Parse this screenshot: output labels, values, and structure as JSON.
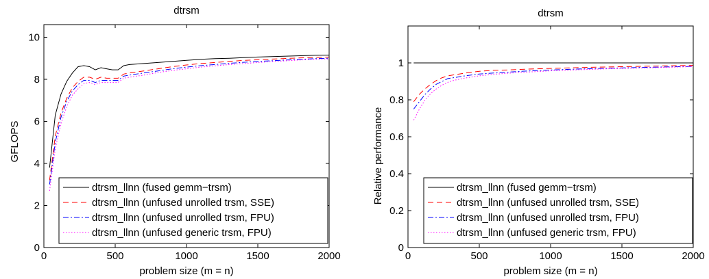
{
  "chart_data": [
    {
      "type": "line",
      "title": "dtrsm",
      "xlabel": "problem size (m = n)",
      "ylabel": "GFLOPS",
      "xlim": [
        0,
        2000
      ],
      "ylim": [
        0,
        10.6
      ],
      "xticks": [
        0,
        500,
        1000,
        1500,
        2000
      ],
      "yticks": [
        0,
        2,
        4,
        6,
        8,
        10
      ],
      "grid": false,
      "legend_position": "bottom-right",
      "series": [
        {
          "name": "dtrsm_llnn (fused gemm−trsm)",
          "color": "#000000",
          "dash": "solid",
          "x": [
            40,
            80,
            120,
            160,
            200,
            240,
            280,
            320,
            360,
            400,
            440,
            480,
            520,
            560,
            600,
            700,
            800,
            900,
            1000,
            1100,
            1200,
            1300,
            1400,
            1500,
            1600,
            1700,
            1800,
            1900,
            2000
          ],
          "y": [
            3.8,
            6.3,
            7.3,
            7.9,
            8.3,
            8.6,
            8.65,
            8.6,
            8.45,
            8.55,
            8.5,
            8.45,
            8.45,
            8.65,
            8.7,
            8.75,
            8.8,
            8.85,
            8.9,
            8.95,
            8.98,
            9.0,
            9.03,
            9.06,
            9.08,
            9.1,
            9.12,
            9.14,
            9.15
          ]
        },
        {
          "name": "dtrsm_llnn (unfused unrolled trsm, SSE)",
          "color": "#ff0000",
          "dash": "dashed",
          "x": [
            40,
            80,
            120,
            160,
            200,
            240,
            280,
            320,
            360,
            400,
            440,
            480,
            520,
            560,
            600,
            700,
            800,
            900,
            1000,
            1100,
            1200,
            1300,
            1400,
            1500,
            1600,
            1700,
            1800,
            1900,
            2000
          ],
          "y": [
            3.2,
            5.3,
            6.4,
            7.1,
            7.6,
            7.9,
            8.1,
            8.1,
            8.0,
            8.1,
            8.05,
            8.05,
            8.05,
            8.25,
            8.3,
            8.4,
            8.5,
            8.6,
            8.68,
            8.75,
            8.8,
            8.85,
            8.9,
            8.93,
            8.96,
            8.99,
            9.02,
            9.04,
            9.06
          ]
        },
        {
          "name": "dtrsm_llnn (unfused unrolled trsm, FPU)",
          "color": "#0000ff",
          "dash": "dashdot",
          "x": [
            40,
            80,
            120,
            160,
            200,
            240,
            280,
            320,
            360,
            400,
            440,
            480,
            520,
            560,
            600,
            700,
            800,
            900,
            1000,
            1100,
            1200,
            1300,
            1400,
            1500,
            1600,
            1700,
            1800,
            1900,
            2000
          ],
          "y": [
            3.0,
            5.0,
            6.2,
            6.95,
            7.45,
            7.75,
            7.95,
            7.95,
            7.85,
            7.95,
            7.95,
            7.95,
            7.95,
            8.15,
            8.2,
            8.3,
            8.4,
            8.5,
            8.58,
            8.65,
            8.7,
            8.76,
            8.81,
            8.85,
            8.88,
            8.92,
            8.95,
            8.98,
            9.0
          ]
        },
        {
          "name": "dtrsm_llnn (unfused generic trsm, FPU)",
          "color": "#ff00ff",
          "dash": "dotted",
          "x": [
            40,
            80,
            120,
            160,
            200,
            240,
            280,
            320,
            360,
            400,
            440,
            480,
            520,
            560,
            600,
            700,
            800,
            900,
            1000,
            1100,
            1200,
            1300,
            1400,
            1500,
            1600,
            1700,
            1800,
            1900,
            2000
          ],
          "y": [
            2.7,
            4.7,
            5.9,
            6.7,
            7.25,
            7.55,
            7.8,
            7.85,
            7.75,
            7.85,
            7.85,
            7.85,
            7.85,
            8.05,
            8.1,
            8.2,
            8.32,
            8.42,
            8.5,
            8.58,
            8.64,
            8.7,
            8.75,
            8.8,
            8.84,
            8.88,
            8.92,
            8.95,
            8.97
          ]
        }
      ]
    },
    {
      "type": "line",
      "title": "dtrsm",
      "xlabel": "problem size (m = n)",
      "ylabel": "Relative performance",
      "xlim": [
        0,
        2000
      ],
      "ylim": [
        0,
        1.2
      ],
      "xticks": [
        0,
        500,
        1000,
        1500,
        2000
      ],
      "yticks": [
        0,
        0.2,
        0.4,
        0.6,
        0.8,
        1
      ],
      "grid": false,
      "legend_position": "bottom-right",
      "series": [
        {
          "name": "dtrsm_llnn (fused gemm−trsm)",
          "color": "#000000",
          "dash": "solid",
          "x": [
            40,
            2000
          ],
          "y": [
            1.0,
            1.0
          ]
        },
        {
          "name": "dtrsm_llnn (unfused unrolled trsm, SSE)",
          "color": "#ff0000",
          "dash": "dashed",
          "x": [
            40,
            80,
            120,
            160,
            200,
            240,
            280,
            320,
            360,
            400,
            500,
            600,
            700,
            800,
            900,
            1000,
            1200,
            1400,
            1600,
            1800,
            2000
          ],
          "y": [
            0.79,
            0.83,
            0.86,
            0.885,
            0.905,
            0.92,
            0.93,
            0.935,
            0.94,
            0.945,
            0.955,
            0.96,
            0.962,
            0.965,
            0.968,
            0.97,
            0.975,
            0.978,
            0.981,
            0.984,
            0.987
          ]
        },
        {
          "name": "dtrsm_llnn (unfused unrolled trsm, FPU)",
          "color": "#0000ff",
          "dash": "dashdot",
          "x": [
            40,
            80,
            120,
            160,
            200,
            240,
            280,
            320,
            360,
            400,
            500,
            600,
            700,
            800,
            900,
            1000,
            1200,
            1400,
            1600,
            1800,
            2000
          ],
          "y": [
            0.75,
            0.79,
            0.83,
            0.86,
            0.885,
            0.9,
            0.915,
            0.92,
            0.925,
            0.93,
            0.94,
            0.945,
            0.95,
            0.955,
            0.958,
            0.962,
            0.967,
            0.971,
            0.975,
            0.978,
            0.981
          ]
        },
        {
          "name": "dtrsm_llnn (unfused generic trsm, FPU)",
          "color": "#ff00ff",
          "dash": "dotted",
          "x": [
            40,
            80,
            120,
            160,
            200,
            240,
            280,
            320,
            360,
            400,
            500,
            600,
            700,
            800,
            900,
            1000,
            1200,
            1400,
            1600,
            1800,
            2000
          ],
          "y": [
            0.69,
            0.75,
            0.8,
            0.835,
            0.86,
            0.88,
            0.895,
            0.905,
            0.912,
            0.918,
            0.93,
            0.938,
            0.944,
            0.949,
            0.953,
            0.957,
            0.963,
            0.968,
            0.972,
            0.976,
            0.98
          ]
        }
      ]
    }
  ]
}
